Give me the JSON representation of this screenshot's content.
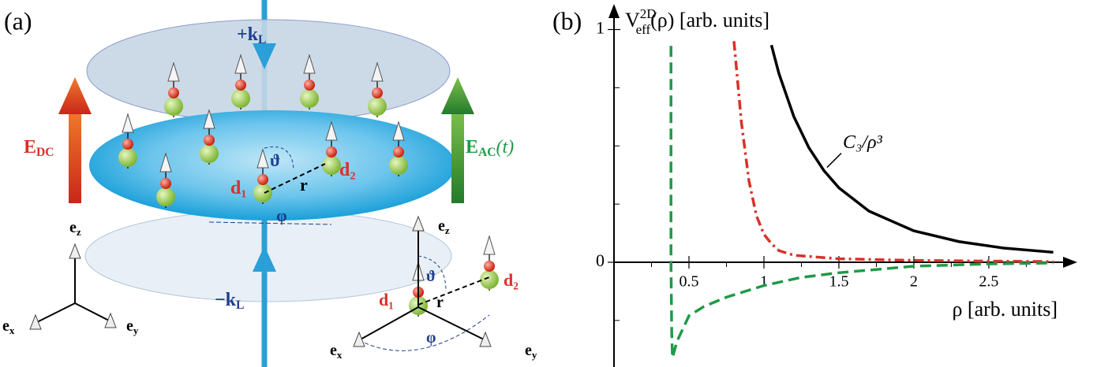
{
  "diagram": {
    "panel_label": "(a)",
    "labels": [
      {
        "text": "+k",
        "sub": "L"
      },
      {
        "text": "−k",
        "sub": "L"
      },
      {
        "text": "E",
        "sub": "DC"
      },
      {
        "text": "E",
        "sub": "AC",
        "post": "(t)"
      },
      {
        "text": "d₁"
      },
      {
        "text": "d₂"
      },
      {
        "text": "r"
      },
      {
        "text": "ϑ"
      },
      {
        "text": "φ"
      },
      {
        "text": "e",
        "sub": "z"
      },
      {
        "text": "e",
        "sub": "x"
      },
      {
        "text": "e",
        "sub": "y"
      }
    ],
    "inset_labels": [
      {
        "text": "e",
        "sub": "z"
      },
      {
        "text": "d₁"
      },
      {
        "text": "d₂"
      },
      {
        "text": "r"
      },
      {
        "text": "ϑ"
      },
      {
        "text": "φ"
      },
      {
        "text": "e",
        "sub": "x"
      },
      {
        "text": "e",
        "sub": "y"
      }
    ]
  },
  "chart_data": {
    "type": "line",
    "panel_label": "(b)",
    "ylabel": {
      "base": "V",
      "sup": "2D",
      "sub": "eff",
      "rest": "(ρ) [arb. units]"
    },
    "xlabel": "ρ [arb. units]",
    "xlim": [
      0,
      3.09
    ],
    "ylim": [
      -0.45,
      1.11
    ],
    "xticks": [
      0.5,
      1,
      1.5,
      2,
      2.5
    ],
    "xminor_ticks": [
      0.25,
      0.75,
      1.25,
      1.75,
      2.25,
      2.75
    ],
    "yticks": [
      0,
      1
    ],
    "yminor_ticks": [
      -0.25,
      0.25,
      0.5,
      0.75
    ],
    "series": [
      {
        "name": "C₃/ρ³",
        "color": "#000000",
        "dash": "solid",
        "x": [
          1.05,
          1.1,
          1.2,
          1.3,
          1.4,
          1.5,
          1.7,
          2.0,
          2.3,
          2.6,
          2.93
        ],
        "values": [
          0.933,
          0.811,
          0.625,
          0.492,
          0.394,
          0.32,
          0.22,
          0.135,
          0.089,
          0.061,
          0.043
        ]
      },
      {
        "color": "#d9312a",
        "dash": "dashdot",
        "x": [
          0.8,
          0.85,
          0.9,
          0.95,
          1.0,
          1.05,
          1.1,
          1.2,
          1.5,
          2.0,
          2.5,
          2.93
        ],
        "values": [
          0.95,
          0.6,
          0.35,
          0.2,
          0.12,
          0.08,
          0.05,
          0.03,
          0.015,
          0.008,
          0.005,
          0.003
        ]
      },
      {
        "color": "#1f9a48",
        "dash": "dashed",
        "x": [
          0.38,
          0.38,
          0.38,
          0.385,
          0.39,
          0.42,
          0.5,
          0.6,
          0.75,
          1.0,
          1.25,
          1.5,
          2.0,
          2.5,
          2.93
        ],
        "values": [
          0.93,
          0.5,
          0,
          -0.3,
          -0.41,
          -0.34,
          -0.23,
          -0.19,
          -0.15,
          -0.1,
          -0.065,
          -0.045,
          -0.017,
          -0.007,
          -0.003
        ]
      }
    ]
  }
}
